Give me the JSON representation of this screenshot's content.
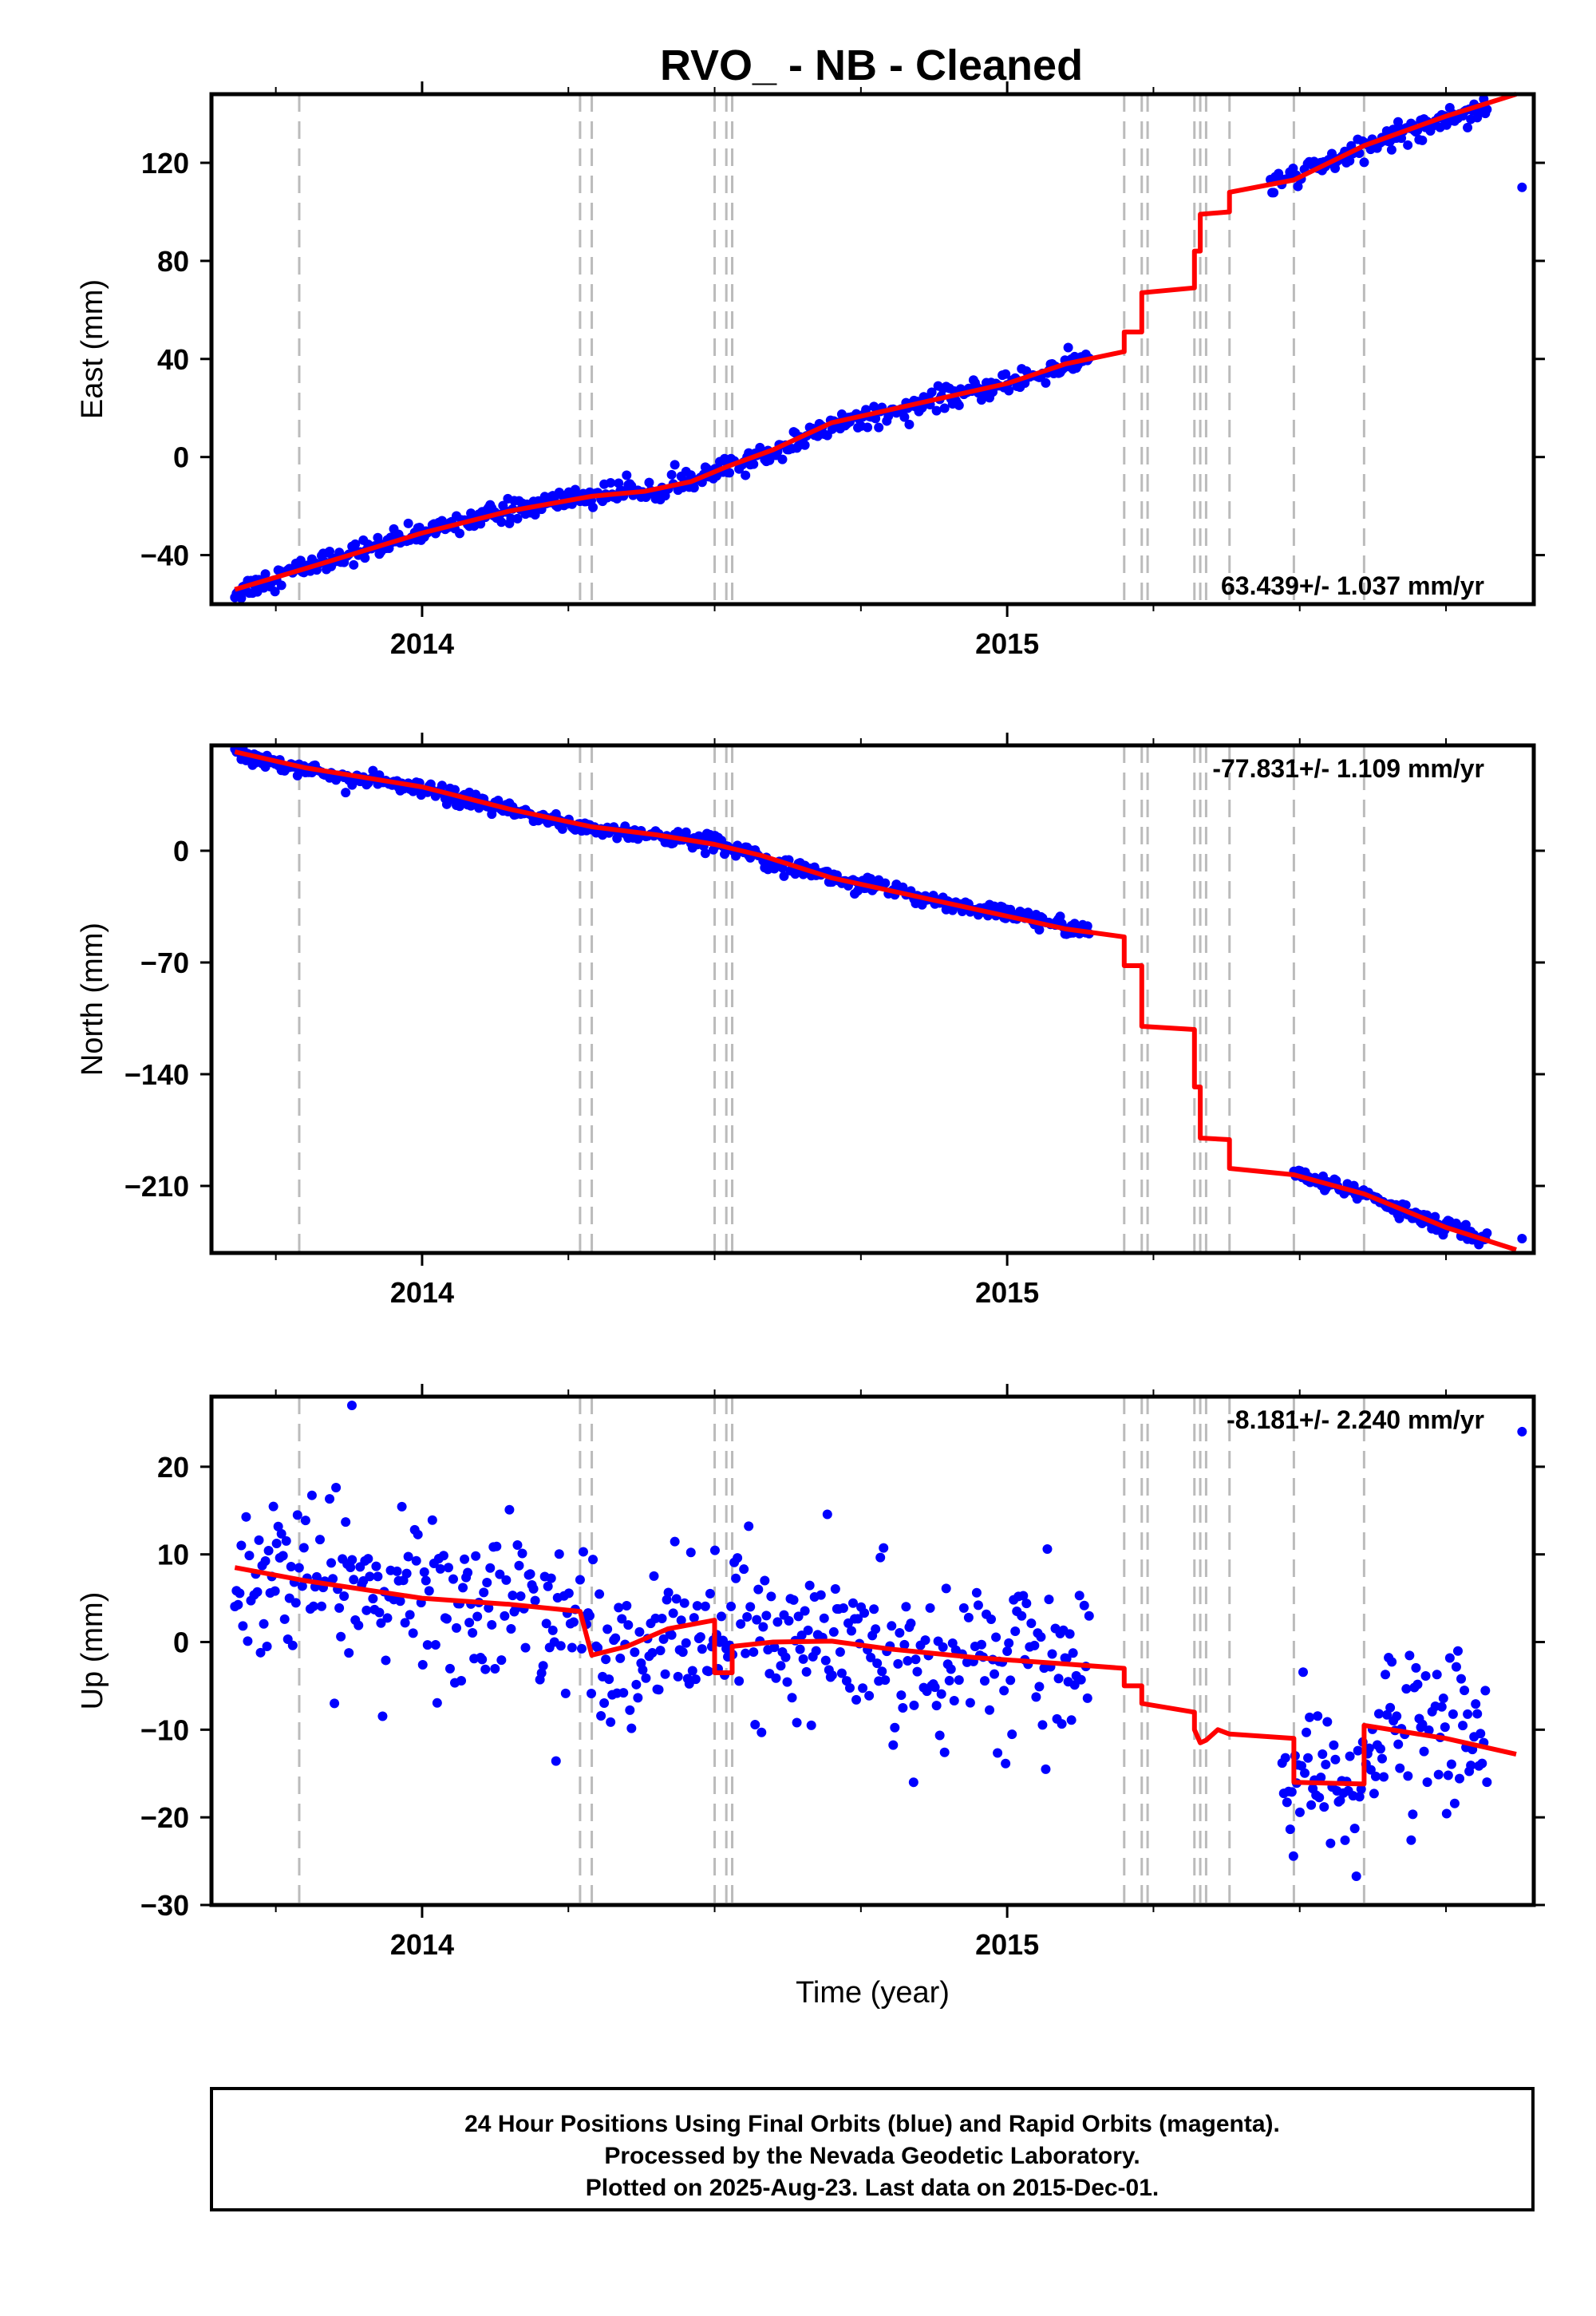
{
  "title": "RVO_  - NB - Cleaned",
  "footer": {
    "line1": "24 Hour Positions Using Final Orbits (blue) and Rapid Orbits (magenta).",
    "line2": "Processed by the Nevada Geodetic Laboratory.",
    "line3": "Plotted on 2025-Aug-23. Last data on 2015-Dec-01."
  },
  "colors": {
    "data": "#0000ff",
    "model": "#ff0000",
    "steps": "#bbbbbb",
    "frame": "#000000"
  },
  "chart_data": [
    {
      "type": "scatter",
      "component": "East",
      "ylabel": "East (mm)",
      "xlabel": "",
      "rate_text": "63.439+/- 1.037 mm/yr",
      "xlim": [
        2013.64,
        2015.9
      ],
      "ylim": [
        -60,
        148
      ],
      "yticks": [
        120,
        80,
        40,
        0,
        -40
      ],
      "ytick_labels": [
        "120",
        "80",
        "40",
        "0",
        "−40"
      ],
      "xticks": [
        2014,
        2015
      ],
      "xtick_labels": [
        "2014",
        "2015"
      ],
      "step_epochs": [
        2013.79,
        2014.27,
        2014.29,
        2014.5,
        2014.52,
        2014.53,
        2015.2,
        2015.23,
        2015.24,
        2015.32,
        2015.33,
        2015.34,
        2015.38,
        2015.49,
        2015.61
      ],
      "model_line": [
        [
          2013.68,
          -54
        ],
        [
          2013.8,
          -45.5
        ],
        [
          2014.0,
          -31
        ],
        [
          2014.15,
          -22
        ],
        [
          2014.29,
          -16
        ],
        [
          2014.38,
          -14
        ],
        [
          2014.46,
          -10
        ],
        [
          2014.52,
          -4
        ],
        [
          2014.6,
          3
        ],
        [
          2014.7,
          14
        ],
        [
          2014.85,
          22
        ],
        [
          2015.0,
          30
        ],
        [
          2015.1,
          38
        ],
        [
          2015.2,
          43
        ],
        [
          2015.2,
          51
        ],
        [
          2015.23,
          51
        ],
        [
          2015.23,
          67
        ],
        [
          2015.32,
          69
        ],
        [
          2015.32,
          84
        ],
        [
          2015.33,
          84
        ],
        [
          2015.33,
          99
        ],
        [
          2015.38,
          100
        ],
        [
          2015.38,
          108
        ],
        [
          2015.49,
          113
        ],
        [
          2015.61,
          127
        ],
        [
          2015.75,
          139
        ],
        [
          2015.87,
          148
        ]
      ],
      "data_segments": [
        {
          "x0": 2013.68,
          "x1": 2015.14,
          "points": [
            [
              2013.68,
              -55
            ],
            [
              2013.75,
              -49
            ],
            [
              2013.85,
              -41
            ],
            [
              2013.95,
              -35
            ],
            [
              2014.05,
              -27
            ],
            [
              2014.15,
              -22
            ],
            [
              2014.25,
              -17
            ],
            [
              2014.35,
              -14
            ],
            [
              2014.45,
              -11
            ],
            [
              2014.52,
              -5
            ],
            [
              2014.6,
              2
            ],
            [
              2014.7,
              13
            ],
            [
              2014.8,
              19
            ],
            [
              2014.9,
              24
            ],
            [
              2015.0,
              30
            ],
            [
              2015.07,
              35
            ],
            [
              2015.14,
              40
            ]
          ],
          "noise": 2.2
        },
        {
          "x0": 2015.45,
          "x1": 2015.82,
          "points": [
            [
              2015.45,
              111
            ],
            [
              2015.55,
              120
            ],
            [
              2015.65,
              130
            ],
            [
              2015.75,
              138
            ],
            [
              2015.82,
              143
            ]
          ],
          "noise": 2.2
        }
      ],
      "outliers": [
        [
          2015.88,
          110
        ]
      ]
    },
    {
      "type": "scatter",
      "component": "North",
      "ylabel": "North (mm)",
      "xlabel": "",
      "rate_text": "-77.831+/- 1.109 mm/yr",
      "xlim": [
        2013.64,
        2015.9
      ],
      "ylim": [
        -252,
        66
      ],
      "yticks": [
        0,
        -70,
        -140,
        -210
      ],
      "ytick_labels": [
        "0",
        "−70",
        "−140",
        "−210"
      ],
      "xticks": [
        2014,
        2015
      ],
      "xtick_labels": [
        "2014",
        "2015"
      ],
      "step_epochs": [
        2013.79,
        2014.27,
        2014.29,
        2014.5,
        2014.52,
        2014.53,
        2015.2,
        2015.23,
        2015.24,
        2015.32,
        2015.33,
        2015.34,
        2015.38,
        2015.49,
        2015.61
      ],
      "model_line": [
        [
          2013.68,
          62
        ],
        [
          2013.8,
          52
        ],
        [
          2014.0,
          40
        ],
        [
          2014.15,
          26
        ],
        [
          2014.29,
          15
        ],
        [
          2014.4,
          10
        ],
        [
          2014.5,
          4
        ],
        [
          2014.58,
          -3
        ],
        [
          2014.7,
          -17
        ],
        [
          2014.85,
          -29
        ],
        [
          2015.0,
          -41
        ],
        [
          2015.1,
          -49
        ],
        [
          2015.2,
          -54
        ],
        [
          2015.2,
          -72
        ],
        [
          2015.23,
          -72
        ],
        [
          2015.23,
          -110
        ],
        [
          2015.32,
          -112
        ],
        [
          2015.32,
          -148
        ],
        [
          2015.33,
          -148
        ],
        [
          2015.33,
          -180
        ],
        [
          2015.38,
          -181
        ],
        [
          2015.38,
          -199
        ],
        [
          2015.49,
          -203
        ],
        [
          2015.61,
          -215
        ],
        [
          2015.75,
          -236
        ],
        [
          2015.87,
          -250
        ]
      ],
      "data_segments": [
        {
          "x0": 2013.68,
          "x1": 2015.14,
          "points": [
            [
              2013.68,
              62
            ],
            [
              2013.8,
              51
            ],
            [
              2014.0,
              38
            ],
            [
              2014.15,
              25
            ],
            [
              2014.29,
              14
            ],
            [
              2014.4,
              9
            ],
            [
              2014.5,
              5
            ],
            [
              2014.58,
              -3
            ],
            [
              2014.7,
              -17
            ],
            [
              2014.85,
              -29
            ],
            [
              2015.0,
              -40
            ],
            [
              2015.14,
              -50
            ]
          ],
          "noise": 2.5
        },
        {
          "x0": 2015.49,
          "x1": 2015.82,
          "points": [
            [
              2015.49,
              -203
            ],
            [
              2015.61,
              -215
            ],
            [
              2015.72,
              -232
            ],
            [
              2015.82,
              -244
            ]
          ],
          "noise": 2.5
        }
      ],
      "outliers": [
        [
          2015.88,
          -243
        ]
      ]
    },
    {
      "type": "scatter",
      "component": "Up",
      "ylabel": "Up (mm)",
      "xlabel": "Time (year)",
      "rate_text": "-8.181+/- 2.240 mm/yr",
      "xlim": [
        2013.64,
        2015.9
      ],
      "ylim": [
        -30,
        28
      ],
      "yticks": [
        20,
        10,
        0,
        -10,
        -20,
        -30
      ],
      "ytick_labels": [
        "20",
        "10",
        "0",
        "−10",
        "−20",
        "−30"
      ],
      "xticks": [
        2014,
        2015
      ],
      "xtick_labels": [
        "2014",
        "2015"
      ],
      "step_epochs": [
        2013.79,
        2014.27,
        2014.29,
        2014.5,
        2014.52,
        2014.53,
        2015.2,
        2015.23,
        2015.24,
        2015.32,
        2015.33,
        2015.34,
        2015.38,
        2015.49,
        2015.61
      ],
      "model_line": [
        [
          2013.68,
          8.5
        ],
        [
          2013.8,
          7
        ],
        [
          2014.0,
          5
        ],
        [
          2014.15,
          4.3
        ],
        [
          2014.27,
          3.5
        ],
        [
          2014.27,
          3.5
        ],
        [
          2014.29,
          -1.5
        ],
        [
          2014.35,
          -0.5
        ],
        [
          2014.42,
          1.5
        ],
        [
          2014.5,
          2.5
        ],
        [
          2014.5,
          -3.5
        ],
        [
          2014.53,
          -3.5
        ],
        [
          2014.53,
          -0.5
        ],
        [
          2014.6,
          0
        ],
        [
          2014.7,
          0.1
        ],
        [
          2014.8,
          -0.8
        ],
        [
          2014.95,
          -1.8
        ],
        [
          2015.1,
          -2.5
        ],
        [
          2015.2,
          -3
        ],
        [
          2015.2,
          -5
        ],
        [
          2015.23,
          -5
        ],
        [
          2015.23,
          -7
        ],
        [
          2015.32,
          -8
        ],
        [
          2015.32,
          -10
        ],
        [
          2015.33,
          -11.5
        ],
        [
          2015.34,
          -11.2
        ],
        [
          2015.36,
          -10
        ],
        [
          2015.38,
          -10.5
        ],
        [
          2015.38,
          -10.5
        ],
        [
          2015.49,
          -11
        ],
        [
          2015.49,
          -16
        ],
        [
          2015.61,
          -16.2
        ],
        [
          2015.61,
          -9.5
        ],
        [
          2015.75,
          -11
        ],
        [
          2015.87,
          -12.8
        ]
      ],
      "data_segments": [
        {
          "x0": 2013.68,
          "x1": 2015.14,
          "points": [
            [
              2013.68,
              9
            ],
            [
              2013.8,
              7
            ],
            [
              2014.0,
              5
            ],
            [
              2014.15,
              4
            ],
            [
              2014.27,
              3
            ],
            [
              2014.35,
              -1
            ],
            [
              2014.5,
              2
            ],
            [
              2014.6,
              0
            ],
            [
              2014.8,
              -1
            ],
            [
              2015.0,
              -2
            ],
            [
              2015.14,
              -3
            ]
          ],
          "noise": 4.5
        },
        {
          "x0": 2015.47,
          "x1": 2015.82,
          "points": [
            [
              2015.47,
              -15
            ],
            [
              2015.55,
              -17
            ],
            [
              2015.61,
              -17
            ],
            [
              2015.65,
              -9
            ],
            [
              2015.75,
              -10
            ],
            [
              2015.82,
              -11
            ]
          ],
          "noise": 4.2
        }
      ],
      "outliers": [
        [
          2015.88,
          24
        ],
        [
          2013.88,
          27
        ],
        [
          2014.84,
          -16
        ]
      ]
    }
  ]
}
